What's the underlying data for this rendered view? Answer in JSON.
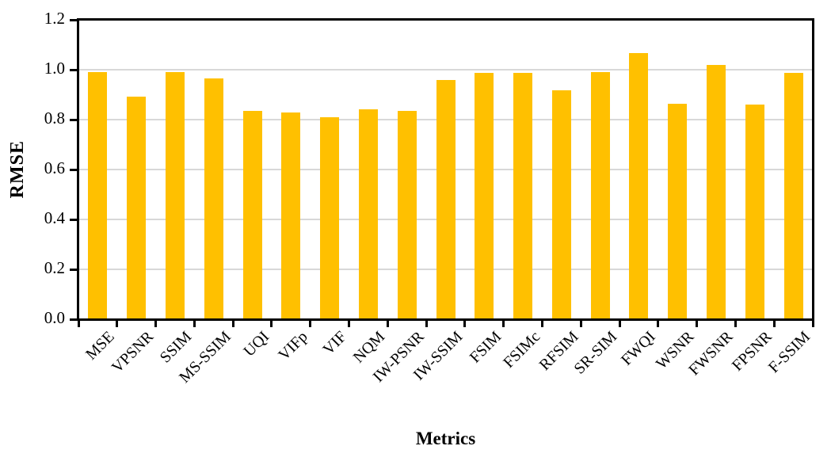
{
  "chart_data": {
    "type": "bar",
    "title": "",
    "xlabel": "Metrics",
    "ylabel": "RMSE",
    "categories": [
      "MSE",
      "VPSNR",
      "SSIM",
      "MS-SSIM",
      "UQI",
      "VIFp",
      "VIF",
      "NQM",
      "IW-PSNR",
      "IW-SSIM",
      "FSIM",
      "FSIMc",
      "RFSIM",
      "SR-SIM",
      "FWQI",
      "WSNR",
      "FWSNR",
      "FPSNR",
      "F-SSIM"
    ],
    "values": [
      0.99,
      0.893,
      0.99,
      0.966,
      0.835,
      0.83,
      0.809,
      0.842,
      0.836,
      0.959,
      0.988,
      0.988,
      0.918,
      0.99,
      1.067,
      0.864,
      1.02,
      0.859,
      0.987
    ],
    "ylim": [
      0.0,
      1.2
    ],
    "ytick_step": 0.2,
    "yticks": [
      "0.0",
      "0.2",
      "0.4",
      "0.6",
      "0.8",
      "1.0",
      "1.2"
    ],
    "grid": true,
    "legend": false,
    "bar_color": "#FFC000",
    "gridline_color": "#D8D8D8",
    "axis_color": "#000000"
  }
}
